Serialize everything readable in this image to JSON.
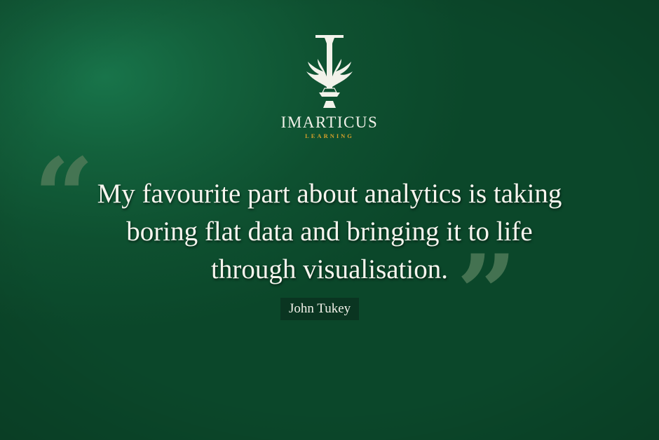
{
  "brand": {
    "name": "IMARTICUS",
    "subtitle": "LEARNING"
  },
  "quote": {
    "lines": [
      "My favourite part about analytics is taking",
      "boring flat data and bringing it to life",
      "through visualisation."
    ],
    "author": "John Tukey"
  },
  "colors": {
    "background": "#13613c",
    "text": "#f6f5ee",
    "accent": "#d6a02a",
    "quote_mark": "#4f7a58",
    "author_bg": "#0a3521"
  },
  "icons": {
    "logo": "imarticus-logo-icon",
    "open_quote": "open-quote-icon",
    "close_quote": "close-quote-icon"
  }
}
